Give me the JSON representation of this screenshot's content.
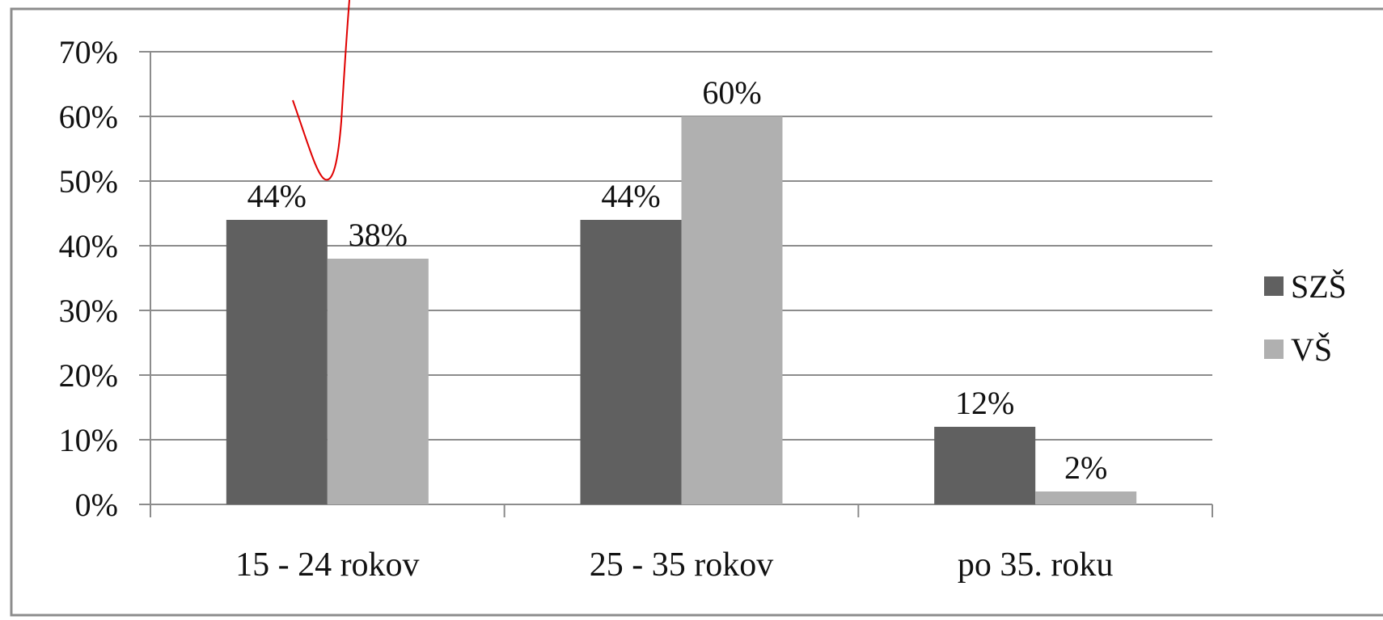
{
  "chart_data": {
    "type": "bar",
    "categories": [
      "15 - 24 rokov",
      "25 - 35 rokov",
      "po 35. roku"
    ],
    "series": [
      {
        "name": "SZŠ",
        "values": [
          44,
          44,
          12
        ],
        "labels": [
          "44%",
          "44%",
          "12%"
        ],
        "color": "#606060"
      },
      {
        "name": "VŠ",
        "values": [
          38,
          60,
          2
        ],
        "labels": [
          "38%",
          "60%",
          "2%"
        ],
        "color": "#b0b0b0"
      }
    ],
    "ylim": [
      0,
      70
    ],
    "yticks": [
      0,
      10,
      20,
      30,
      40,
      50,
      60,
      70
    ],
    "ytick_labels": [
      "0%",
      "10%",
      "20%",
      "30%",
      "40%",
      "50%",
      "60%",
      "70%"
    ],
    "grid": true,
    "legend_position": "right",
    "gridline_color": "#8c8c8c",
    "border_color": "#8c8c8c",
    "annotation_color": "#e00000"
  }
}
